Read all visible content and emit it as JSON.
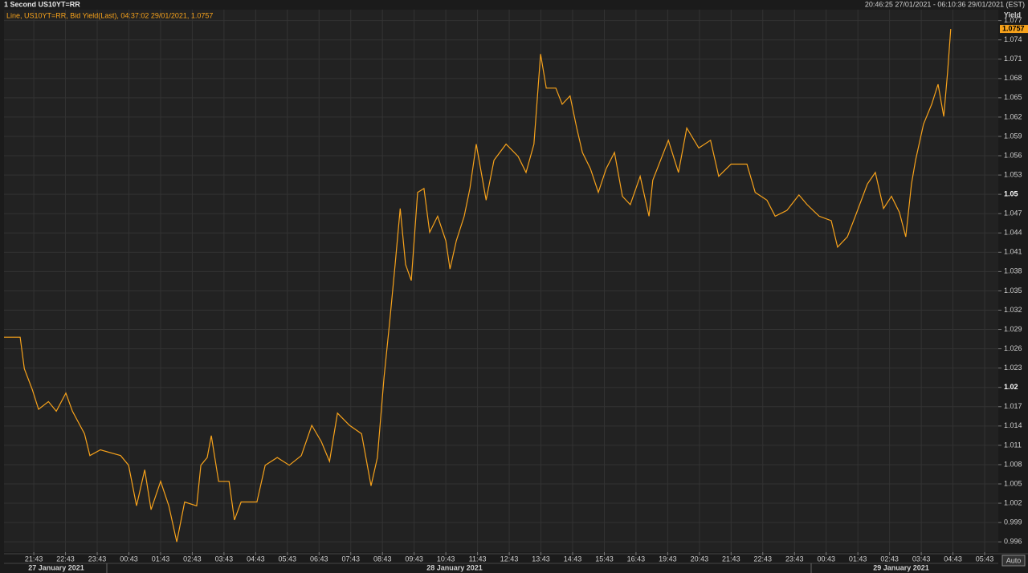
{
  "header": {
    "title": "1 Second US10YT=RR",
    "range": "20:46:25 27/01/2021 - 06:10:36 29/01/2021 (EST)"
  },
  "chart_data": {
    "type": "line",
    "y_axis_label": "Yield",
    "auto_button": "Auto",
    "series": [
      {
        "name": "Line, US10YT=RR, Bid Yield(Last), 04:37:02 29/01/2021, 1.0757",
        "color": "#f7a21b",
        "x": [
          -0.94,
          -0.43,
          -0.3,
          -0.05,
          0.15,
          0.46,
          0.71,
          1.01,
          1.22,
          1.6,
          1.77,
          2.1,
          2.74,
          2.99,
          3.24,
          3.5,
          3.7,
          4.0,
          4.26,
          4.51,
          4.76,
          5.14,
          5.27,
          5.47,
          5.6,
          5.83,
          6.16,
          6.33,
          6.54,
          7.04,
          7.3,
          7.68,
          8.06,
          8.44,
          8.77,
          9.07,
          9.33,
          9.58,
          9.96,
          10.34,
          10.64,
          10.84,
          11.05,
          11.23,
          11.4,
          11.56,
          11.73,
          11.91,
          12.11,
          12.31,
          12.49,
          12.74,
          13.0,
          13.13,
          13.33,
          13.58,
          13.76,
          13.96,
          14.27,
          14.52,
          14.9,
          15.28,
          15.53,
          15.78,
          15.99,
          16.17,
          16.47,
          16.67,
          16.92,
          17.13,
          17.31,
          17.56,
          17.81,
          18.06,
          18.32,
          18.57,
          18.82,
          19.13,
          19.41,
          19.53,
          20.02,
          20.34,
          20.6,
          20.98,
          21.35,
          21.61,
          22.0,
          22.5,
          22.76,
          23.13,
          23.39,
          23.76,
          24.14,
          24.4,
          24.78,
          25.16,
          25.36,
          25.67,
          25.92,
          26.3,
          26.55,
          26.81,
          27.06,
          27.31,
          27.51,
          27.69,
          27.82,
          28.07,
          28.33,
          28.53,
          28.71,
          28.83,
          28.93
        ],
        "values": [
          1.0278,
          1.0278,
          1.0229,
          1.0197,
          1.0166,
          1.0178,
          1.0163,
          1.0191,
          1.0163,
          1.0128,
          1.0094,
          1.0103,
          1.0094,
          1.0079,
          1.0016,
          1.0072,
          1.001,
          1.0054,
          1.0016,
          0.996,
          1.0022,
          1.0016,
          1.0079,
          1.0091,
          1.0125,
          1.0054,
          1.0054,
          0.9994,
          1.0022,
          1.0022,
          1.0079,
          1.0091,
          1.0079,
          1.0094,
          1.0141,
          1.0116,
          1.0085,
          1.016,
          1.0141,
          1.0128,
          1.0047,
          1.0091,
          1.0216,
          1.0303,
          1.0391,
          1.0478,
          1.0391,
          1.0366,
          1.0503,
          1.0509,
          1.0441,
          1.0466,
          1.0428,
          1.0384,
          1.0428,
          1.0466,
          1.0509,
          1.0578,
          1.0491,
          1.0553,
          1.0578,
          1.0559,
          1.0534,
          1.0578,
          1.0718,
          1.0665,
          1.0665,
          1.064,
          1.0653,
          1.0603,
          1.0565,
          1.054,
          1.0503,
          1.054,
          1.0565,
          1.0497,
          1.0484,
          1.0528,
          1.0466,
          1.0522,
          1.0584,
          1.0534,
          1.0603,
          1.0572,
          1.0584,
          1.0528,
          1.0547,
          1.0547,
          1.0503,
          1.0491,
          1.0466,
          1.0475,
          1.0499,
          1.0484,
          1.0466,
          1.0459,
          1.0418,
          1.0434,
          1.0466,
          1.0516,
          1.0534,
          1.0478,
          1.0497,
          1.0472,
          1.0434,
          1.0516,
          1.0553,
          1.0609,
          1.064,
          1.0671,
          1.0621,
          1.069,
          1.0757
        ]
      }
    ],
    "last_value": 1.0757,
    "xlim": [
      -0.94,
      30.43
    ],
    "xticks": [
      {
        "value": 0,
        "label": "21:43"
      },
      {
        "value": 1,
        "label": "22:43"
      },
      {
        "value": 2,
        "label": "23:43"
      },
      {
        "value": 3,
        "label": "00:43"
      },
      {
        "value": 4,
        "label": "01:43"
      },
      {
        "value": 5,
        "label": "02:43"
      },
      {
        "value": 6,
        "label": "03:43"
      },
      {
        "value": 7,
        "label": "04:43"
      },
      {
        "value": 8,
        "label": "05:43"
      },
      {
        "value": 9,
        "label": "06:43"
      },
      {
        "value": 10,
        "label": "07:43"
      },
      {
        "value": 11,
        "label": "08:43"
      },
      {
        "value": 12,
        "label": "09:43"
      },
      {
        "value": 13,
        "label": "10:43"
      },
      {
        "value": 14,
        "label": "11:43"
      },
      {
        "value": 15,
        "label": "12:43"
      },
      {
        "value": 16,
        "label": "13:43"
      },
      {
        "value": 17,
        "label": "14:43"
      },
      {
        "value": 18,
        "label": "15:43"
      },
      {
        "value": 19,
        "label": "16:43"
      },
      {
        "value": 20,
        "label": "19:43"
      },
      {
        "value": 21,
        "label": "20:43"
      },
      {
        "value": 22,
        "label": "21:43"
      },
      {
        "value": 23,
        "label": "22:43"
      },
      {
        "value": 24,
        "label": "23:43"
      },
      {
        "value": 25,
        "label": "00:43"
      },
      {
        "value": 26,
        "label": "01:43"
      },
      {
        "value": 27,
        "label": "02:43"
      },
      {
        "value": 28,
        "label": "03:43"
      },
      {
        "value": 29,
        "label": "04:43"
      },
      {
        "value": 30,
        "label": "05:43"
      }
    ],
    "date_labels": [
      "27 January 2021",
      "28 January 2021",
      "29 January 2021"
    ],
    "ylim": [
      0.9944,
      1.0787
    ],
    "yticks": [
      0.996,
      0.999,
      1.002,
      1.005,
      1.008,
      1.011,
      1.014,
      1.017,
      1.02,
      1.023,
      1.026,
      1.029,
      1.032,
      1.035,
      1.038,
      1.041,
      1.044,
      1.047,
      1.05,
      1.053,
      1.056,
      1.059,
      1.062,
      1.065,
      1.068,
      1.071,
      1.074,
      1.077
    ],
    "grid": true
  }
}
